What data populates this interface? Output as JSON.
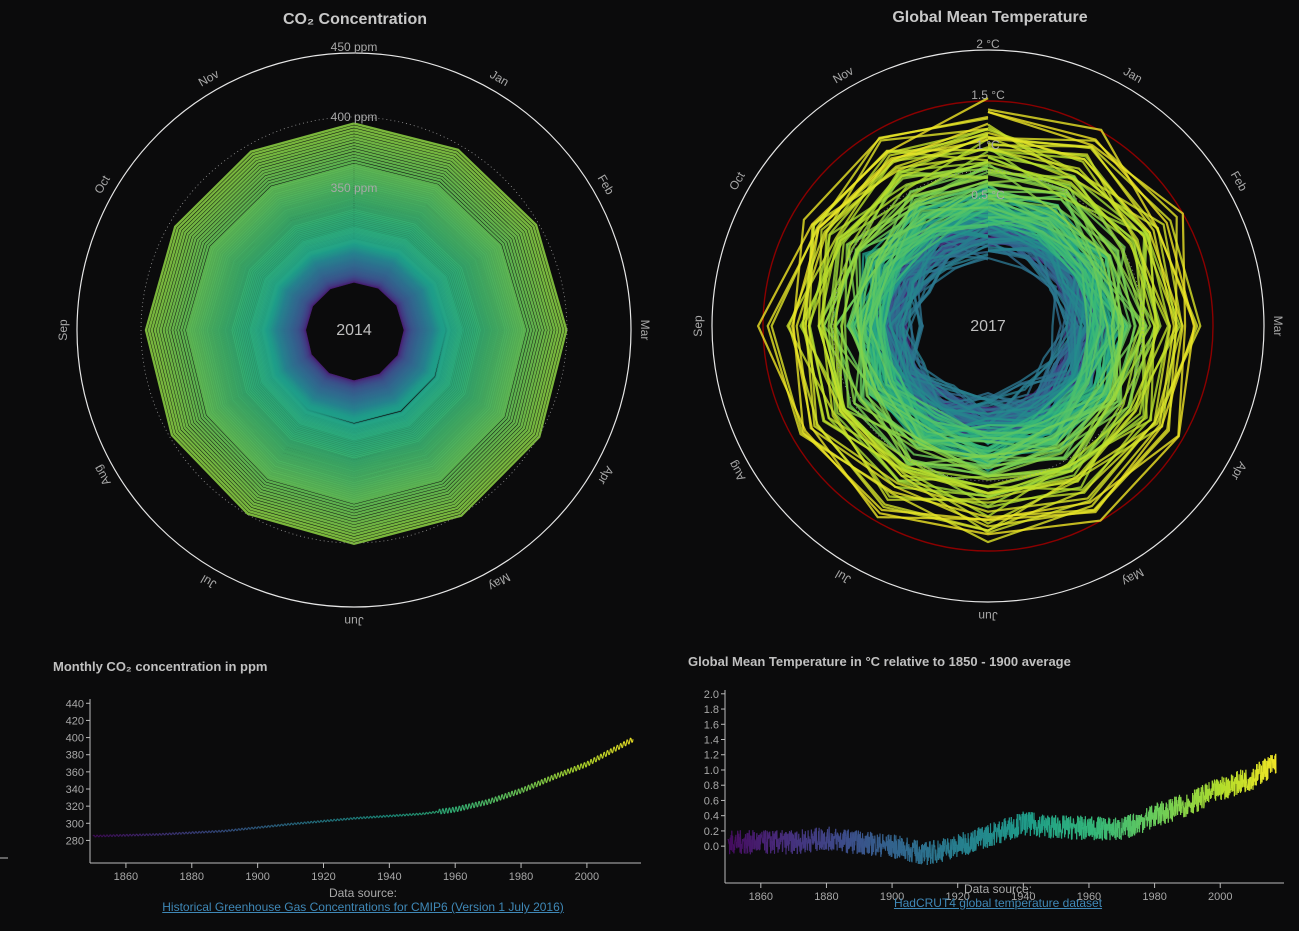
{
  "co2_spiral": {
    "title": "CO₂ Concentration",
    "center_year": "2014",
    "ring_labels": [
      "450 ppm",
      "400 ppm",
      "350 ppm"
    ],
    "months": [
      "Jan",
      "Feb",
      "Mar",
      "Apr",
      "May",
      "Jun",
      "Jul",
      "Aug",
      "Sep",
      "Oct",
      "Nov"
    ]
  },
  "temp_spiral": {
    "title": "Global Mean Temperature",
    "center_year": "2017",
    "ring_labels": [
      "2 °C",
      "1.5 °C",
      "1 °C",
      "0.5 °C"
    ],
    "months": [
      "Jan",
      "Feb",
      "Mar",
      "Apr",
      "May",
      "Jun",
      "Jul",
      "Aug",
      "Sep",
      "Oct",
      "Nov"
    ],
    "limit_color": "#8b0000"
  },
  "co2_line": {
    "subtitle": "Monthly CO₂ concentration in ppm",
    "data_source_label": "Data source:",
    "data_source_link": "Historical Greenhouse Gas Concentrations for CMIP6 (Version 1 July 2016)"
  },
  "temp_line": {
    "subtitle": "Global Mean Temperature in °C relative to 1850 - 1900 average",
    "data_source_label": "Data source:",
    "data_source_link": "HadCRUT4 global temperature dataset"
  },
  "chart_data": [
    {
      "type": "line",
      "title": "Monthly CO₂ concentration in ppm",
      "xlabel": "",
      "ylabel": "",
      "xlim": [
        1850,
        2014
      ],
      "ylim": [
        270,
        445
      ],
      "xticks": [
        1860,
        1880,
        1900,
        1920,
        1940,
        1960,
        1980,
        2000
      ],
      "yticks": [
        280,
        300,
        320,
        340,
        360,
        380,
        400,
        420,
        440
      ],
      "x": [
        1850,
        1870,
        1890,
        1910,
        1930,
        1950,
        1960,
        1970,
        1980,
        1990,
        2000,
        2014
      ],
      "values": [
        285,
        287,
        291,
        299,
        306,
        311,
        316,
        325,
        338,
        354,
        369,
        398
      ]
    },
    {
      "type": "line",
      "title": "Global Mean Temperature in °C relative to 1850 - 1900 average",
      "xlabel": "",
      "ylabel": "",
      "xlim": [
        1850,
        2017
      ],
      "ylim": [
        -0.3,
        2.05
      ],
      "xticks": [
        1860,
        1880,
        1900,
        1920,
        1940,
        1960,
        1980,
        2000
      ],
      "yticks": [
        0.0,
        0.2,
        0.4,
        0.6,
        0.8,
        1.0,
        1.2,
        1.4,
        1.6,
        1.8,
        2.0
      ],
      "x": [
        1850,
        1870,
        1880,
        1900,
        1910,
        1920,
        1940,
        1950,
        1970,
        1980,
        1990,
        2000,
        2010,
        2017
      ],
      "values": [
        0.05,
        0.05,
        0.1,
        0.0,
        -0.1,
        0.0,
        0.3,
        0.25,
        0.22,
        0.4,
        0.55,
        0.75,
        0.9,
        1.1
      ]
    }
  ]
}
